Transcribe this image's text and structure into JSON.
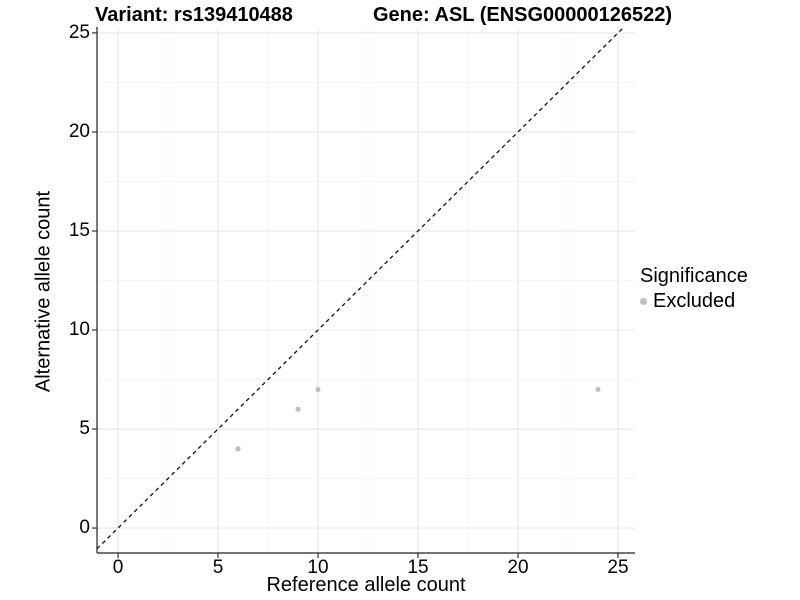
{
  "chart_data": {
    "type": "scatter",
    "titles": {
      "variant": "Variant: rs139410488",
      "gene": "Gene: ASL (ENSG00000126522)"
    },
    "xlabel": "Reference allele count",
    "ylabel": "Alternative allele count",
    "x_ticks": [
      0,
      5,
      10,
      15,
      20,
      25
    ],
    "y_ticks": [
      0,
      5,
      10,
      15,
      20,
      25
    ],
    "minor_ticks": [
      2.5,
      7.5,
      12.5,
      17.5,
      22.5
    ],
    "xlim": [
      -1.05,
      25.85
    ],
    "ylim": [
      -1.26,
      25.3
    ],
    "series": [
      {
        "name": "Excluded",
        "points": [
          {
            "x": 6,
            "y": 4
          },
          {
            "x": 9,
            "y": 6
          },
          {
            "x": 10,
            "y": 7
          },
          {
            "x": 24,
            "y": 7
          }
        ]
      }
    ],
    "identity_line": {
      "style": "dashed",
      "slope": 1,
      "intercept": 0
    },
    "legend": {
      "title": "Significance",
      "items": [
        {
          "label": "Excluded",
          "color": "#bebebe"
        }
      ]
    },
    "colors": {
      "point": "#bebebe",
      "grid_major": "#e8e8e8",
      "grid_minor": "#f4f4f4",
      "axis": "#222222",
      "identity_line": "#111111",
      "background": "#ffffff"
    }
  }
}
